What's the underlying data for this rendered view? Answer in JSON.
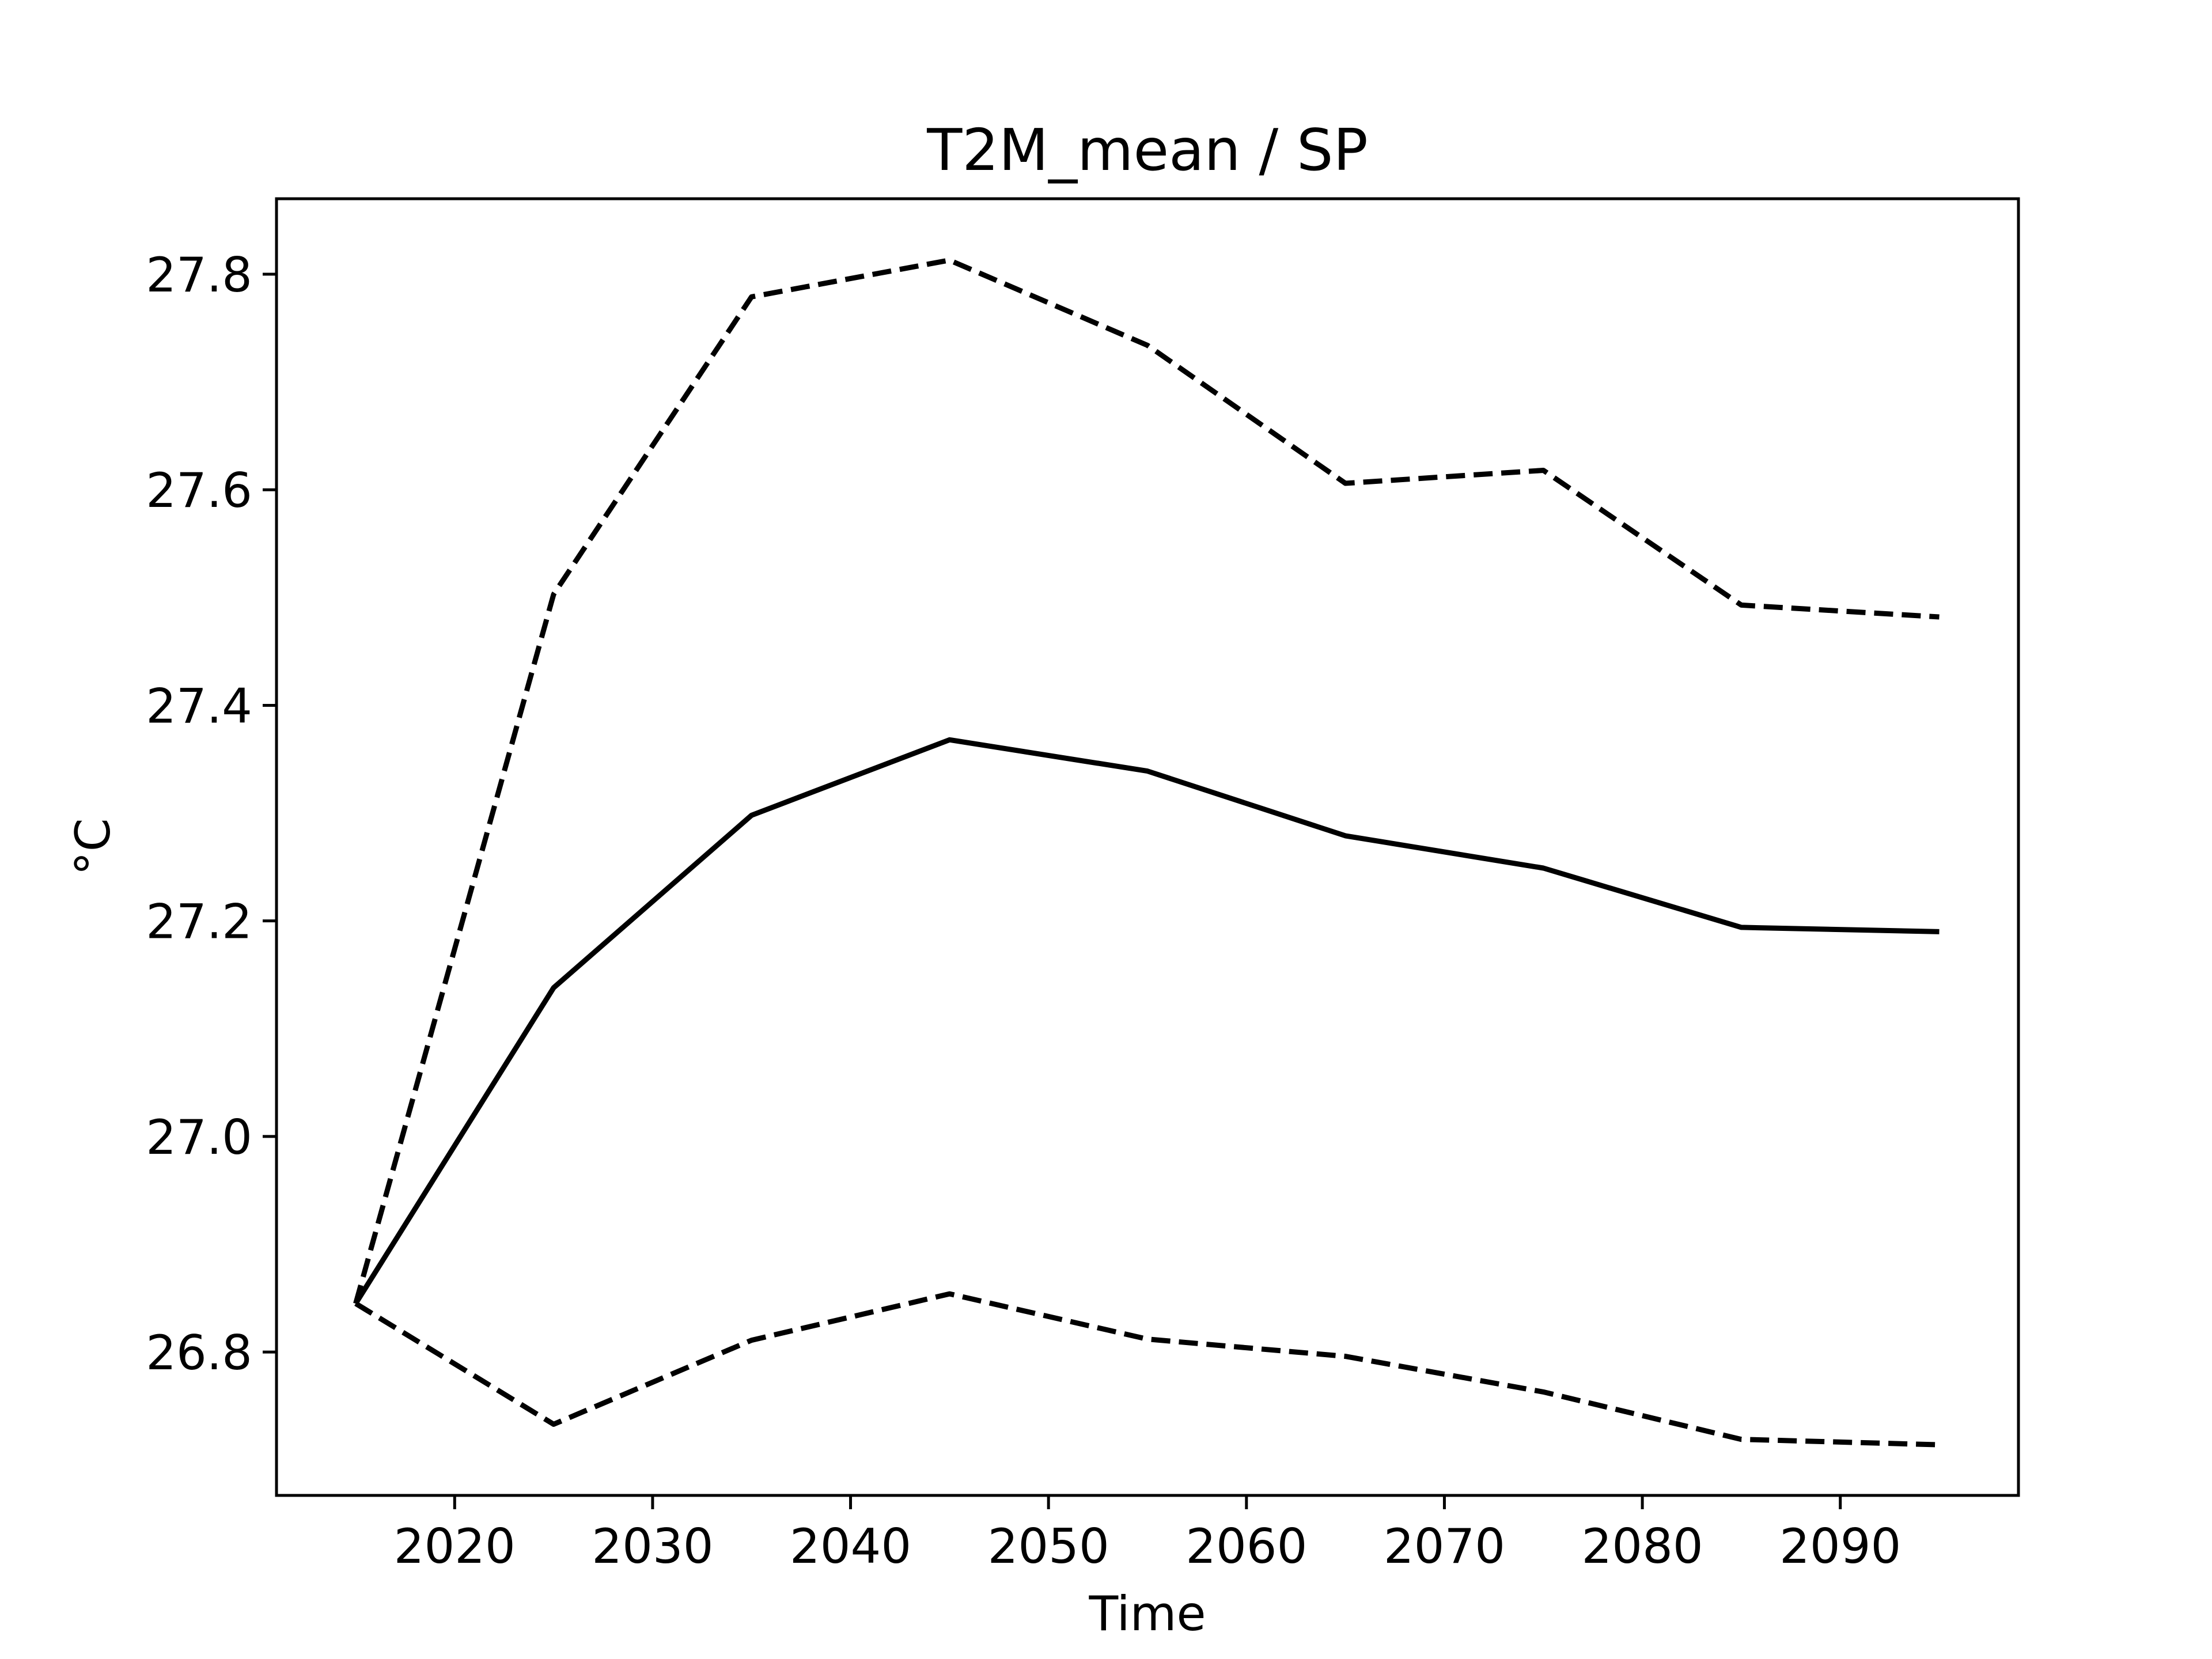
{
  "chart_data": {
    "type": "line",
    "title": "T2M_mean / SP",
    "xlabel": "Time",
    "ylabel": "°C",
    "xlim": [
      2011,
      2099
    ],
    "ylim": [
      26.667,
      27.87
    ],
    "x_ticks": [
      2020,
      2030,
      2040,
      2050,
      2060,
      2070,
      2080,
      2090
    ],
    "x_tick_labels": [
      "2020",
      "2030",
      "2040",
      "2050",
      "2060",
      "2070",
      "2080",
      "2090"
    ],
    "y_ticks": [
      26.8,
      27.0,
      27.2,
      27.4,
      27.6,
      27.8
    ],
    "y_tick_labels": [
      "26.8",
      "27.0",
      "27.2",
      "27.4",
      "27.6",
      "27.8"
    ],
    "grid": false,
    "legend": "none",
    "x": [
      2015,
      2025,
      2035,
      2045,
      2055,
      2065,
      2075,
      2085,
      2095
    ],
    "series": [
      {
        "style": "solid",
        "color": "#000000",
        "values": [
          26.845,
          27.138,
          27.298,
          27.368,
          27.339,
          27.279,
          27.249,
          27.194,
          27.19
        ]
      },
      {
        "style": "dashed",
        "color": "#000000",
        "values": [
          26.845,
          27.503,
          27.779,
          27.813,
          27.734,
          27.606,
          27.618,
          27.493,
          27.482
        ]
      },
      {
        "style": "dashed",
        "color": "#000000",
        "values": [
          26.845,
          26.733,
          26.811,
          26.854,
          26.812,
          26.796,
          26.763,
          26.719,
          26.714
        ]
      }
    ]
  }
}
